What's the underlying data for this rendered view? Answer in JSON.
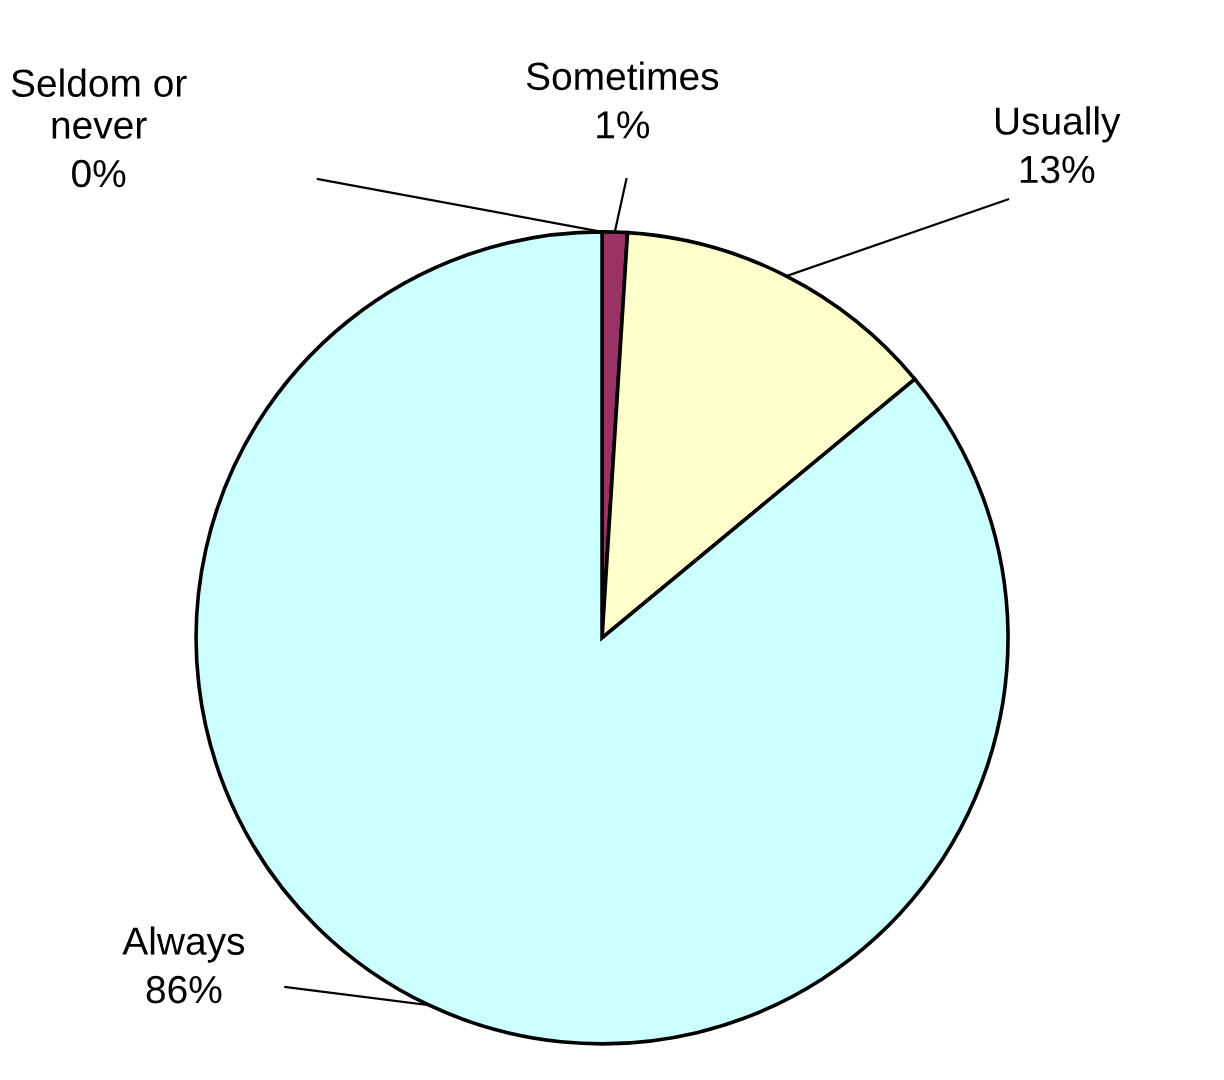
{
  "chart_data": {
    "type": "pie",
    "categories": [
      "Seldom or never",
      "Sometimes",
      "Usually",
      "Always"
    ],
    "values": [
      0,
      1,
      13,
      86
    ],
    "value_labels": [
      "0%",
      "1%",
      "13%",
      "86%"
    ],
    "colors": [
      "#000080",
      "#993366",
      "#ffffcc",
      "#ccffff"
    ]
  }
}
